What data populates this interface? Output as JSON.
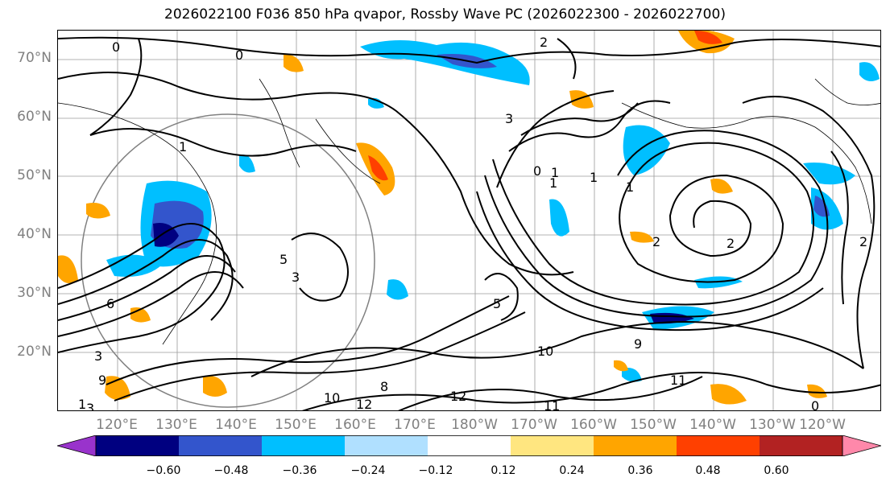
{
  "title": "2026022100 F036 850 hPa qvapor, Rossby Wave PC (2026022300 - 2026022700)",
  "lat_labels": [
    "70°N",
    "60°N",
    "50°N",
    "40°N",
    "30°N",
    "20°N"
  ],
  "lon_labels": [
    "120°E",
    "130°E",
    "140°E",
    "150°E",
    "160°E",
    "170°E",
    "180°W",
    "170°W",
    "160°W",
    "150°W",
    "140°W",
    "130°W",
    "120°W"
  ],
  "colorbar": {
    "colors": [
      "#9933cc",
      "#000080",
      "#3355cc",
      "#00bfff",
      "#b0e0ff",
      "#ffffff",
      "#ffe680",
      "#ffa500",
      "#ff4000",
      "#b22222",
      "#ff88aa"
    ],
    "tick_labels": [
      "−0.60",
      "−0.48",
      "−0.36",
      "−0.24",
      "−0.12",
      "0.12",
      "0.24",
      "0.36",
      "0.48",
      "0.60"
    ],
    "ticks": [
      -0.6,
      -0.48,
      -0.36,
      -0.24,
      -0.12,
      0.12,
      0.24,
      0.36,
      0.48,
      0.6
    ],
    "extend": "both"
  },
  "contour_labels": [
    "0",
    "2",
    "1",
    "1",
    "1",
    "2",
    "3",
    "5",
    "5",
    "3",
    "9",
    "11",
    "12",
    "11",
    "10",
    "12",
    "10",
    "9",
    "8",
    "1",
    "0",
    "3",
    "2",
    "1",
    "1",
    "3",
    "6",
    "0",
    "2",
    "0"
  ]
}
